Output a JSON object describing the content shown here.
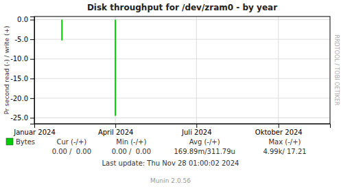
{
  "chart_data": {
    "type": "bar",
    "title": "Disk throughput for /dev/zram0 - by year",
    "ylabel": "Pr second read (-) / write (+)",
    "x": [
      1706745600,
      1711929600
    ],
    "series": [
      {
        "name": "Bytes",
        "color": "#00cc00",
        "values": [
          -5.3,
          -24.5
        ]
      }
    ],
    "xlim": [
      1704067200,
      1732748402
    ],
    "xticks": [
      {
        "value": 1704067200,
        "label": "Januar 2024"
      },
      {
        "value": 1711929600,
        "label": "April 2024"
      },
      {
        "value": 1719792000,
        "label": "Juli 2024"
      },
      {
        "value": 1727740800,
        "label": "Oktober 2024"
      }
    ],
    "ylim": [
      -26.5,
      0.8
    ],
    "yticks": [
      {
        "value": 0.0,
        "label": "0.0"
      },
      {
        "value": -5.0,
        "label": "-5.0"
      },
      {
        "value": -10.0,
        "label": "-10.0"
      },
      {
        "value": -15.0,
        "label": "-15.0"
      },
      {
        "value": -20.0,
        "label": "-20.0"
      },
      {
        "value": -25.0,
        "label": "-25.0"
      }
    ],
    "grid": true,
    "legend": "bottom-left",
    "annotations": [
      "Cur (-/+)",
      "Min (-/+)",
      "Avg (-/+)",
      "Max (-/+)",
      "0.00 /  0.00",
      "0.00 /  0.00",
      "169.89m/311.79u",
      "4.99k/ 17.21",
      "Last update: Thu Nov 28 01:00:02 2024",
      "Munin 2.0.56",
      "RRDTOOL / TOBI OETIKER"
    ]
  }
}
